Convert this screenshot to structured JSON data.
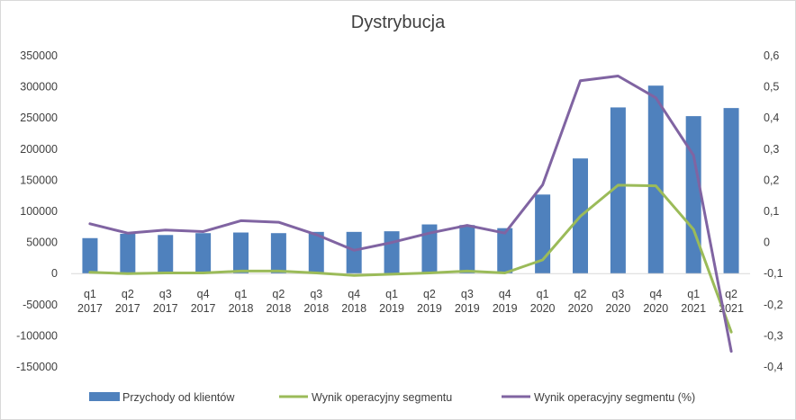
{
  "chart_data": {
    "type": "bar",
    "title": "Dystrybucja",
    "categories": [
      "q1 2017",
      "q2 2017",
      "q3 2017",
      "q4 2017",
      "q1 2018",
      "q2 2018",
      "q3 2018",
      "q4 2018",
      "q1 2019",
      "q2 2019",
      "q3 2019",
      "q4 2019",
      "q1 2020",
      "q2 2020",
      "q3 2020",
      "q4 2020",
      "q1 2021",
      "q2 2021"
    ],
    "category_lines": [
      [
        "q1",
        "2017"
      ],
      [
        "q2",
        "2017"
      ],
      [
        "q3",
        "2017"
      ],
      [
        "q4",
        "2017"
      ],
      [
        "q1",
        "2018"
      ],
      [
        "q2",
        "2018"
      ],
      [
        "q3",
        "2018"
      ],
      [
        "q4",
        "2018"
      ],
      [
        "q1",
        "2019"
      ],
      [
        "q2",
        "2019"
      ],
      [
        "q3",
        "2019"
      ],
      [
        "q4",
        "2019"
      ],
      [
        "q1",
        "2020"
      ],
      [
        "q2",
        "2020"
      ],
      [
        "q3",
        "2020"
      ],
      [
        "q4",
        "2020"
      ],
      [
        "q1",
        "2021"
      ],
      [
        "q2",
        "2021"
      ]
    ],
    "series": [
      {
        "name": "Przychody od klientów",
        "type": "bar",
        "axis": "left",
        "color": "#4f81bd",
        "values": [
          57000,
          64000,
          62000,
          65000,
          66000,
          65000,
          67000,
          67000,
          68000,
          79000,
          78000,
          73000,
          127000,
          185000,
          267000,
          302000,
          253000,
          266000
        ]
      },
      {
        "name": "Wynik operacyjny segmentu",
        "type": "line",
        "axis": "left",
        "color": "#9bbb59",
        "values": [
          2000,
          0,
          1000,
          1000,
          4000,
          4000,
          1000,
          -3000,
          -1000,
          1000,
          4000,
          1000,
          22000,
          92000,
          142000,
          141000,
          71000,
          -94000
        ]
      },
      {
        "name": "Wynik operacyjny segmentu (%)",
        "type": "line",
        "axis": "right",
        "color": "#8064a2",
        "values": [
          0.06,
          0.03,
          0.04,
          0.035,
          0.07,
          0.065,
          0.025,
          -0.025,
          0.0,
          0.03,
          0.055,
          0.03,
          0.185,
          0.52,
          0.535,
          0.465,
          0.28,
          -0.35
        ]
      }
    ],
    "y_left": {
      "min": -150000,
      "max": 350000,
      "step": 50000,
      "tick_labels": [
        "-150000",
        "-100000",
        "-50000",
        "0",
        "50000",
        "100000",
        "150000",
        "200000",
        "250000",
        "300000",
        "350000"
      ]
    },
    "y_right": {
      "min": -0.4,
      "max": 0.6,
      "step": 0.1,
      "tick_labels": [
        "-0,4",
        "-0,3",
        "-0,2",
        "-0,1",
        "0",
        "0,1",
        "0,2",
        "0,3",
        "0,4",
        "0,5",
        "0,6"
      ]
    },
    "grid": false,
    "legend_position": "bottom"
  }
}
